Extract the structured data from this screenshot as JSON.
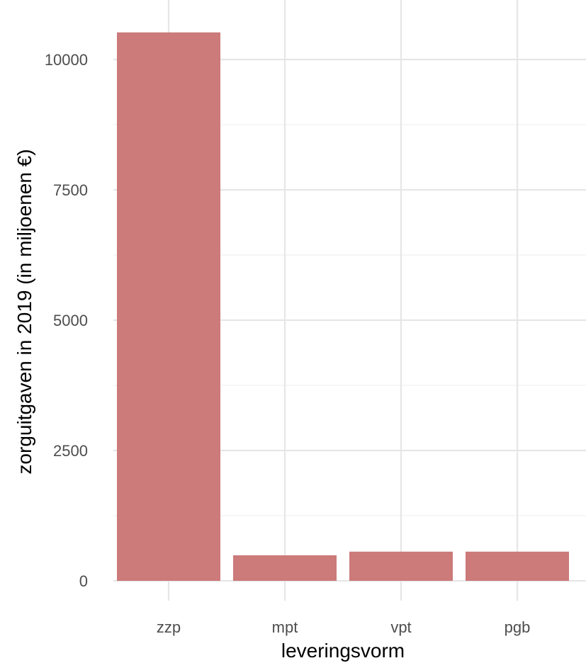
{
  "chart_data": {
    "type": "bar",
    "categories": [
      "zzp",
      "mpt",
      "vpt",
      "pgb"
    ],
    "values": [
      10520,
      490,
      560,
      560
    ],
    "xlabel": "leveringsvorm",
    "ylabel": "zorguitgaven in 2019 (in miljoenen €)",
    "ylim": [
      0,
      10800
    ],
    "yticks": [
      0,
      2500,
      5000,
      7500,
      10000
    ],
    "grid": true,
    "legend": "none",
    "bar_color": "#cc7a7a"
  }
}
